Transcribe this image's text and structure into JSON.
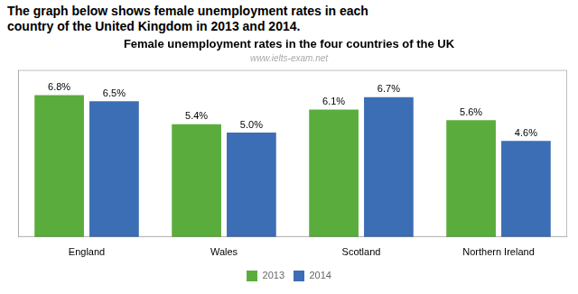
{
  "chart_data": {
    "type": "bar",
    "title": "Female unemployment rates in the four countries of the UK",
    "subtitle": "www.ielts-exam.net",
    "annotations": [
      "The graph below shows female unemployment rates in each",
      "country of the United Kingdom in 2013 and 2014."
    ],
    "categories": [
      "England",
      "Wales",
      "Scotland",
      "Northern Ireland"
    ],
    "series": [
      {
        "name": "2013",
        "color": "#5aad3c",
        "values": [
          6.8,
          5.4,
          6.1,
          5.6
        ],
        "value_labels": [
          "6.8%",
          "5.4%",
          "6.1%",
          "5.6%"
        ]
      },
      {
        "name": "2014",
        "color": "#3c6eb5",
        "values": [
          6.5,
          5.0,
          6.7,
          4.6
        ],
        "value_labels": [
          "6.5%",
          "5.0%",
          "6.7%",
          "4.6%"
        ]
      }
    ],
    "ylim": [
      0,
      8
    ],
    "yticks": [],
    "grid": false,
    "legend": "bottom",
    "data_labels": true,
    "tick_labels": "x"
  }
}
